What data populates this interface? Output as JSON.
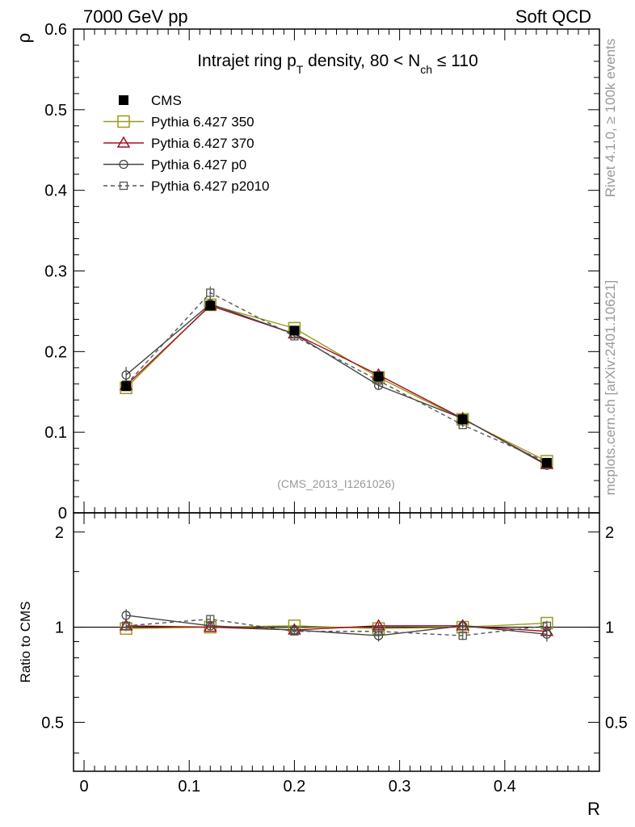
{
  "header": {
    "left": "7000 GeV pp",
    "right": "Soft QCD"
  },
  "side_labels": {
    "rivet": "Rivet 4.1.0, ≥ 100k events",
    "mcplots": "mcplots.cern.ch [arXiv:2401.10621]"
  },
  "chart_data": {
    "type": "line",
    "title": {
      "prefix": "Intrajet ring p",
      "prefix_sub": "T",
      "middle": " density, 80 < N",
      "middle_sub": "ch",
      "suffix": " ≤ 110"
    },
    "watermark": "(CMS_2013_I1261026)",
    "xlabel": "R",
    "ylabel": "ρ",
    "ratio_ylabel": "Ratio to CMS",
    "xlim": [
      -0.01,
      0.49
    ],
    "ylim": [
      0,
      0.6
    ],
    "ratio_ylim": [
      0.35,
      2.3
    ],
    "x_ticks": [
      {
        "v": 0,
        "label": "0"
      },
      {
        "v": 0.1,
        "label": "0.1"
      },
      {
        "v": 0.2,
        "label": "0.2"
      },
      {
        "v": 0.3,
        "label": "0.3"
      },
      {
        "v": 0.4,
        "label": "0.4"
      }
    ],
    "y_ticks": [
      {
        "v": 0,
        "label": "0"
      },
      {
        "v": 0.1,
        "label": "0.1"
      },
      {
        "v": 0.2,
        "label": "0.2"
      },
      {
        "v": 0.3,
        "label": "0.3"
      },
      {
        "v": 0.4,
        "label": "0.4"
      },
      {
        "v": 0.5,
        "label": "0.5"
      },
      {
        "v": 0.6,
        "label": "0.6"
      }
    ],
    "ratio_ticks": [
      {
        "v": 0.5,
        "label": "0.5"
      },
      {
        "v": 1,
        "label": "1"
      },
      {
        "v": 2,
        "label": "2"
      }
    ],
    "x": [
      0.04,
      0.12,
      0.2,
      0.28,
      0.36,
      0.44
    ],
    "data": {
      "name": "CMS",
      "values": [
        0.157,
        0.257,
        0.226,
        0.169,
        0.116,
        0.062
      ],
      "errors": [
        0.004,
        0.005,
        0.004,
        0.003,
        0.003,
        0.002
      ]
    },
    "series": [
      {
        "name": "Pythia 6.427 350",
        "color": "#9a9a1c",
        "marker": "square-large",
        "dash": "",
        "values": [
          0.155,
          0.258,
          0.229,
          0.168,
          0.116,
          0.064
        ],
        "errors": [
          0.003,
          0.003,
          0.003,
          0.002,
          0.002,
          0.002
        ]
      },
      {
        "name": "Pythia 6.427 370",
        "color": "#a01020",
        "marker": "triangle",
        "dash": "",
        "values": [
          0.158,
          0.257,
          0.222,
          0.171,
          0.117,
          0.06
        ],
        "errors": [
          0.003,
          0.003,
          0.003,
          0.002,
          0.002,
          0.002
        ]
      },
      {
        "name": "Pythia 6.427 p0",
        "color": "#444444",
        "marker": "circle",
        "dash": "",
        "values": [
          0.171,
          0.259,
          0.222,
          0.158,
          0.117,
          0.059
        ],
        "errors": [
          0.01,
          0.008,
          0.005,
          0.005,
          0.004,
          0.003
        ]
      },
      {
        "name": "Pythia 6.427 p2010",
        "color": "#555555",
        "marker": "square-small",
        "dash": "5,4",
        "values": [
          0.159,
          0.273,
          0.219,
          0.164,
          0.109,
          0.063
        ],
        "errors": [
          0.004,
          0.008,
          0.005,
          0.004,
          0.003,
          0.002
        ]
      }
    ],
    "ratios": [
      {
        "values": [
          0.99,
          1.0,
          1.01,
          0.99,
          1.0,
          1.03
        ],
        "errors": [
          0.02,
          0.02,
          0.02,
          0.02,
          0.02,
          0.02
        ]
      },
      {
        "values": [
          1.01,
          1.0,
          0.98,
          1.01,
          1.01,
          0.97
        ],
        "errors": [
          0.02,
          0.02,
          0.02,
          0.02,
          0.02,
          0.02
        ]
      },
      {
        "values": [
          1.09,
          1.01,
          0.98,
          0.94,
          1.01,
          0.95
        ],
        "errors": [
          0.05,
          0.03,
          0.03,
          0.04,
          0.04,
          0.05
        ]
      },
      {
        "values": [
          1.01,
          1.06,
          0.97,
          0.97,
          0.94,
          1.01
        ],
        "errors": [
          0.03,
          0.03,
          0.02,
          0.03,
          0.03,
          0.03
        ]
      }
    ]
  }
}
